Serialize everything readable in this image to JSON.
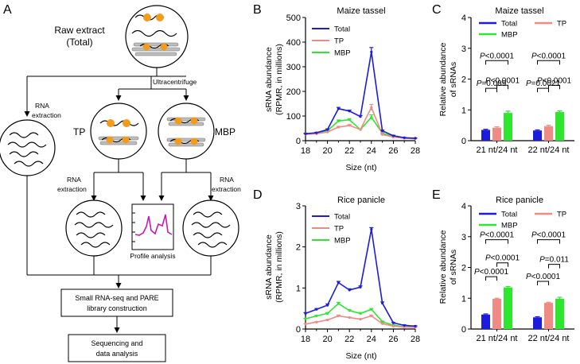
{
  "panels": {
    "A": "A",
    "B": "B",
    "C": "C",
    "D": "D",
    "E": "E"
  },
  "diagram": {
    "raw_extract_line1": "Raw extract",
    "raw_extract_line2": "(Total)",
    "ultracentrifuge": "Ultracentrifuge",
    "rna_extraction": [
      "RNA",
      "extraction"
    ],
    "tp": "TP",
    "mbp": "MBP",
    "profile_analysis": "Profile analysis",
    "box1_line1": "Small RNA-seq and PARE",
    "box1_line2": "library construction",
    "box2_line1": "Sequencing and",
    "box2_line2": "data analysis"
  },
  "colors": {
    "total": "#1c1cdc",
    "tp": "#f08a84",
    "mbp": "#2ee62e",
    "orange": "#f29b1d",
    "membrane": "#bdbdbd",
    "profile": "#c21bb5"
  },
  "chart_data": [
    {
      "id": "B",
      "type": "line",
      "title": "Maize tassel",
      "xlabel": "Size (nt)",
      "ylabel": [
        "sRNA abundance",
        "(RPMR, in millions)"
      ],
      "x": [
        18,
        19,
        20,
        21,
        22,
        23,
        24,
        25,
        26,
        27,
        28
      ],
      "xticks": [
        18,
        20,
        22,
        24,
        26,
        28
      ],
      "yticks": [
        0,
        100,
        200,
        300,
        400,
        500
      ],
      "xlim": [
        18,
        28
      ],
      "ylim": [
        0,
        500
      ],
      "series": [
        {
          "name": "Total",
          "values": [
            28,
            32,
            45,
            130,
            120,
            98,
            360,
            40,
            20,
            12,
            10
          ],
          "err": [
            2,
            2,
            3,
            5,
            4,
            4,
            18,
            3,
            2,
            1,
            1
          ]
        },
        {
          "name": "TP",
          "values": [
            26,
            28,
            35,
            55,
            62,
            45,
            135,
            25,
            15,
            10,
            8
          ],
          "err": [
            2,
            2,
            2,
            3,
            3,
            3,
            12,
            2,
            1,
            1,
            1
          ]
        },
        {
          "name": "MBP",
          "values": [
            26,
            30,
            40,
            80,
            85,
            45,
            95,
            30,
            17,
            10,
            8
          ],
          "err": [
            2,
            2,
            2,
            4,
            4,
            3,
            10,
            2,
            1,
            1,
            1
          ]
        }
      ]
    },
    {
      "id": "C",
      "type": "bar",
      "title": "Maize tassel",
      "ylabel": [
        "Relative abundance",
        "of sRNAs"
      ],
      "categories": [
        "21 nt/24 nt",
        "22 nt/24 nt"
      ],
      "yticks": [
        0,
        1,
        2,
        3,
        4
      ],
      "ylim": [
        0,
        4
      ],
      "series": [
        {
          "name": "Total",
          "values": [
            0.35,
            0.33
          ],
          "err": [
            0.02,
            0.02
          ]
        },
        {
          "name": "TP",
          "values": [
            0.42,
            0.47
          ],
          "err": [
            0.03,
            0.03
          ]
        },
        {
          "name": "MBP",
          "values": [
            0.9,
            0.93
          ],
          "err": [
            0.06,
            0.04
          ]
        }
      ],
      "annotations": [
        {
          "group": 0,
          "from": 0,
          "to": 1,
          "text": "P=0.089",
          "y": 1.7
        },
        {
          "group": 0,
          "from": 1,
          "to": 2,
          "text": "P<0.0001",
          "y": 1.8
        },
        {
          "group": 0,
          "from": 0,
          "to": 2,
          "text": "P<0.0001",
          "y": 2.6
        },
        {
          "group": 1,
          "from": 0,
          "to": 1,
          "text": "P=0.0021",
          "y": 1.7
        },
        {
          "group": 1,
          "from": 1,
          "to": 2,
          "text": "P<0.0001",
          "y": 1.8
        },
        {
          "group": 1,
          "from": 0,
          "to": 2,
          "text": "P<0.0001",
          "y": 2.6
        }
      ]
    },
    {
      "id": "D",
      "type": "line",
      "title": "Rice panicle",
      "xlabel": "Size (nt)",
      "ylabel": [
        "sRNA abundance",
        "(RPMR, in millions)"
      ],
      "x": [
        18,
        19,
        20,
        21,
        22,
        23,
        24,
        25,
        26,
        27,
        28
      ],
      "xticks": [
        18,
        20,
        22,
        24,
        26,
        28
      ],
      "yticks": [
        0,
        1,
        2,
        3
      ],
      "xlim": [
        18,
        28
      ],
      "ylim": [
        0,
        3
      ],
      "series": [
        {
          "name": "Total",
          "values": [
            0.38,
            0.48,
            0.58,
            1.13,
            0.95,
            1.02,
            2.43,
            0.63,
            0.15,
            0.09,
            0.07
          ],
          "err": [
            0.02,
            0.02,
            0.03,
            0.03,
            0.03,
            0.03,
            0.04,
            0.03,
            0.01,
            0.01,
            0.01
          ]
        },
        {
          "name": "TP",
          "values": [
            0.12,
            0.17,
            0.22,
            0.32,
            0.28,
            0.24,
            0.32,
            0.13,
            0.07,
            0.05,
            0.04
          ],
          "err": [
            0.01,
            0.01,
            0.01,
            0.02,
            0.01,
            0.01,
            0.02,
            0.01,
            0.01,
            0.01,
            0.01
          ]
        },
        {
          "name": "MBP",
          "values": [
            0.25,
            0.32,
            0.38,
            0.62,
            0.45,
            0.38,
            0.48,
            0.18,
            0.09,
            0.06,
            0.05
          ],
          "err": [
            0.01,
            0.01,
            0.02,
            0.03,
            0.02,
            0.02,
            0.02,
            0.01,
            0.01,
            0.01,
            0.01
          ]
        }
      ]
    },
    {
      "id": "E",
      "type": "bar",
      "title": "Rice panicle",
      "ylabel": [
        "Relative abundance",
        "of sRNAs"
      ],
      "categories": [
        "21 nt/24 nt",
        "22 nt/24 nt"
      ],
      "yticks": [
        0,
        1,
        2,
        3,
        4
      ],
      "ylim": [
        0,
        4
      ],
      "series": [
        {
          "name": "Total",
          "values": [
            0.47,
            0.38
          ],
          "err": [
            0.02,
            0.02
          ]
        },
        {
          "name": "TP",
          "values": [
            0.98,
            0.85
          ],
          "err": [
            0.02,
            0.02
          ]
        },
        {
          "name": "MBP",
          "values": [
            1.35,
            0.98
          ],
          "err": [
            0.03,
            0.05
          ]
        }
      ],
      "annotations": [
        {
          "group": 0,
          "from": 0,
          "to": 1,
          "text": "P<0.0001",
          "y": 1.7
        },
        {
          "group": 0,
          "from": 1,
          "to": 2,
          "text": "P<0.0001",
          "y": 2.15
        },
        {
          "group": 0,
          "from": 0,
          "to": 2,
          "text": "P<0.0001",
          "y": 2.9
        },
        {
          "group": 1,
          "from": 0,
          "to": 1,
          "text": "P<0.0001",
          "y": 1.55
        },
        {
          "group": 1,
          "from": 1,
          "to": 2,
          "text": "P=0.011",
          "y": 2.1
        },
        {
          "group": 1,
          "from": 0,
          "to": 2,
          "text": "P<0.0001",
          "y": 2.9
        }
      ]
    }
  ]
}
